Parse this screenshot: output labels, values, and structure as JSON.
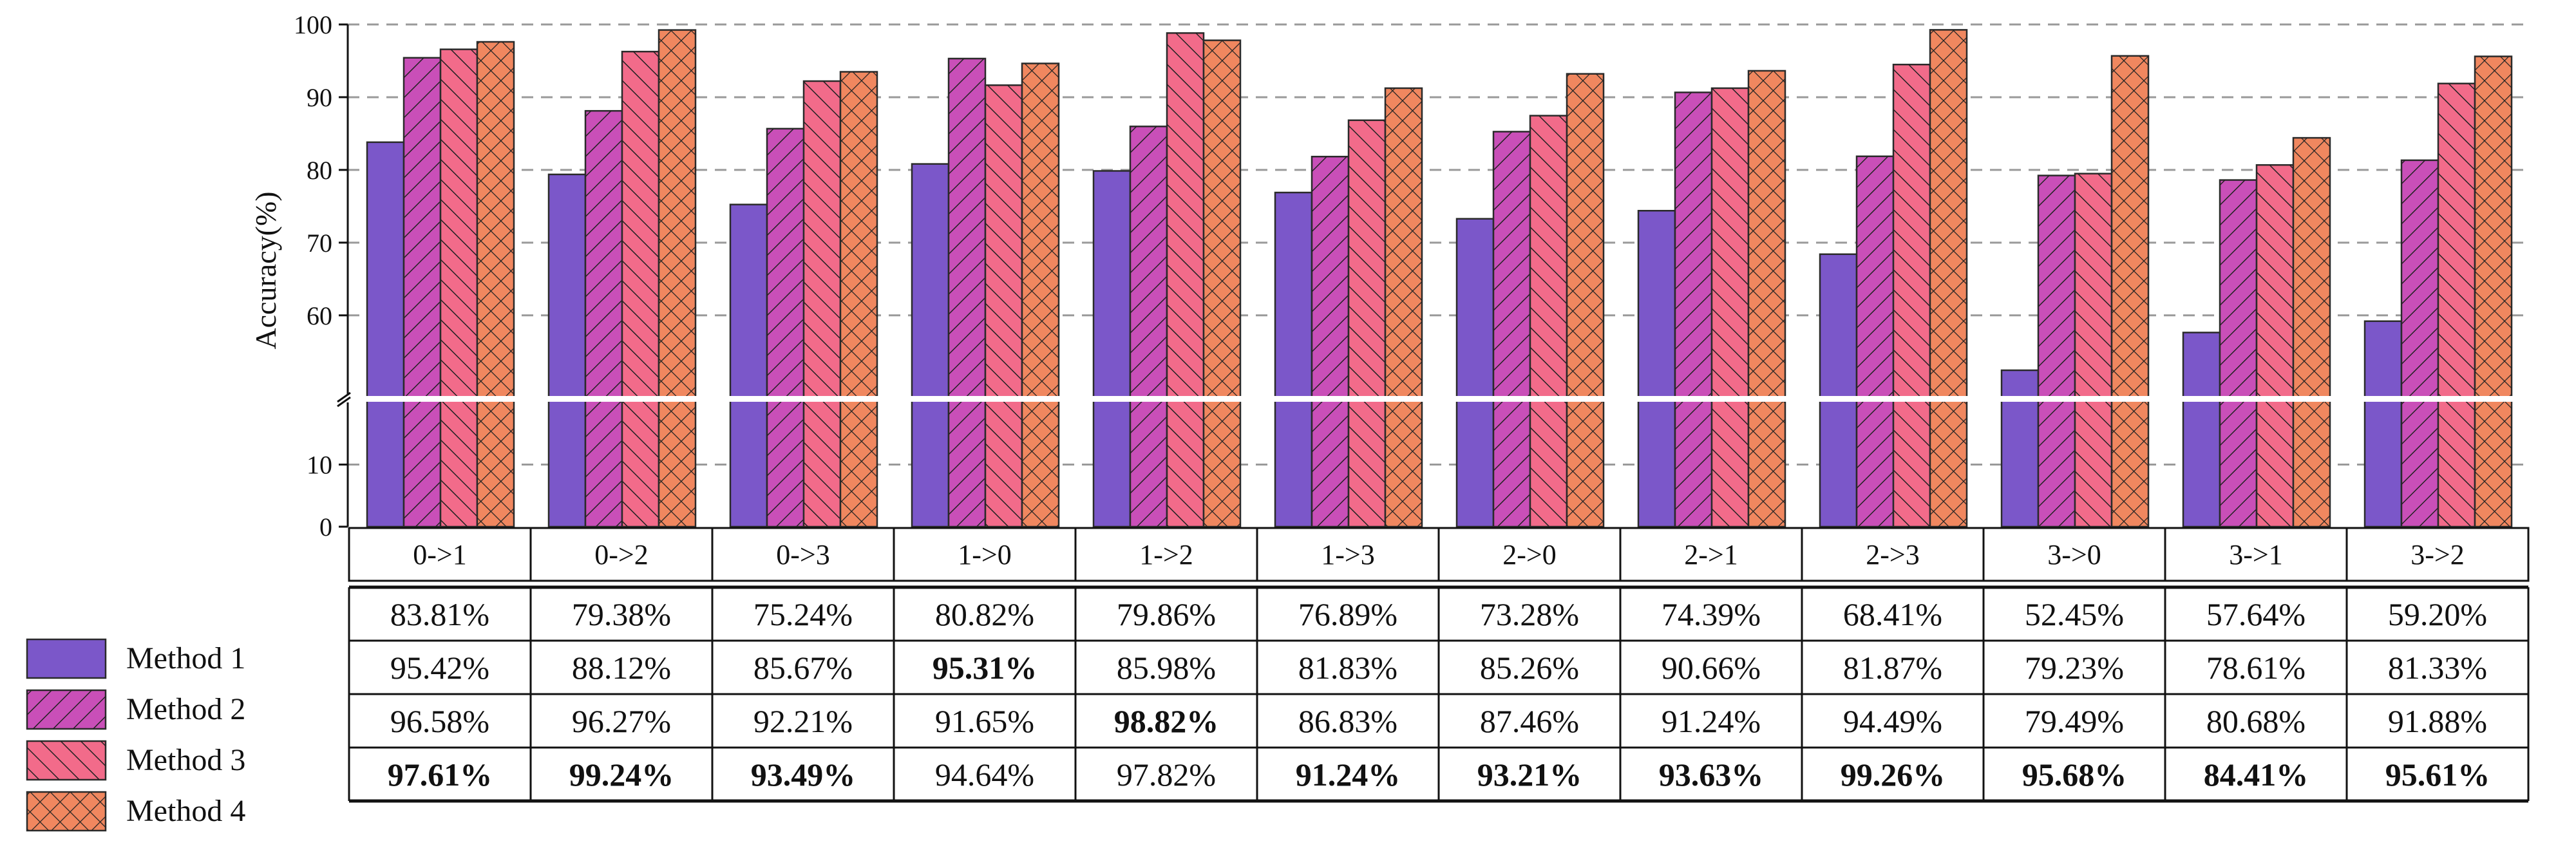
{
  "chart_data": {
    "type": "bar",
    "ylabel": "Accuracy(%)",
    "axis_break": true,
    "ylim_lower": [
      0,
      20
    ],
    "ylim_upper": [
      49,
      100
    ],
    "yticks_lower": [
      0,
      10
    ],
    "yticks_upper": [
      60,
      70,
      80,
      90,
      100
    ],
    "grid": "dashed horizontal",
    "legend_position": "bottom-left",
    "categories": [
      "0->1",
      "0->2",
      "0->3",
      "1->0",
      "1->2",
      "1->3",
      "2->0",
      "2->1",
      "2->3",
      "3->0",
      "3->1",
      "3->2"
    ],
    "series": [
      {
        "name": "Method 1",
        "color": "#7b57c9",
        "pattern": "solid",
        "values": [
          83.81,
          79.38,
          75.24,
          80.82,
          79.86,
          76.89,
          73.28,
          74.39,
          68.41,
          52.45,
          57.64,
          59.2
        ],
        "labels": [
          "83.81%",
          "79.38%",
          "75.24%",
          "80.82%",
          "79.86%",
          "76.89%",
          "73.28%",
          "74.39%",
          "68.41%",
          "52.45%",
          "57.64%",
          "59.20%"
        ]
      },
      {
        "name": "Method 2",
        "color": "#c94fb8",
        "pattern": "diagonal-hatch",
        "values": [
          95.42,
          88.12,
          85.67,
          95.31,
          85.98,
          81.83,
          85.26,
          90.66,
          81.87,
          79.23,
          78.61,
          81.33
        ],
        "labels": [
          "95.42%",
          "88.12%",
          "85.67%",
          "95.31%",
          "85.98%",
          "81.83%",
          "85.26%",
          "90.66%",
          "81.87%",
          "79.23%",
          "78.61%",
          "81.33%"
        ]
      },
      {
        "name": "Method 3",
        "color": "#f26b8a",
        "pattern": "diagonal-hatch",
        "values": [
          96.58,
          96.27,
          92.21,
          91.65,
          98.82,
          86.83,
          87.46,
          91.24,
          94.49,
          79.49,
          80.68,
          91.88
        ],
        "labels": [
          "96.58%",
          "96.27%",
          "92.21%",
          "91.65%",
          "98.82%",
          "86.83%",
          "87.46%",
          "91.24%",
          "94.49%",
          "79.49%",
          "80.68%",
          "91.88%"
        ]
      },
      {
        "name": "Method 4",
        "color": "#f0875f",
        "pattern": "cross-hatch",
        "values": [
          97.61,
          99.24,
          93.49,
          94.64,
          97.82,
          91.24,
          93.21,
          93.63,
          99.26,
          95.68,
          84.41,
          95.61
        ],
        "labels": [
          "97.61%",
          "99.24%",
          "93.49%",
          "94.64%",
          "97.82%",
          "91.24%",
          "93.21%",
          "93.63%",
          "99.26%",
          "95.68%",
          "84.41%",
          "95.61%"
        ]
      }
    ],
    "bold_cells": [
      [
        1,
        3
      ],
      [
        2,
        4
      ],
      [
        3,
        0
      ],
      [
        3,
        1
      ],
      [
        3,
        2
      ],
      [
        3,
        5
      ],
      [
        3,
        6
      ],
      [
        3,
        7
      ],
      [
        3,
        8
      ],
      [
        3,
        9
      ],
      [
        3,
        10
      ],
      [
        3,
        11
      ]
    ]
  }
}
